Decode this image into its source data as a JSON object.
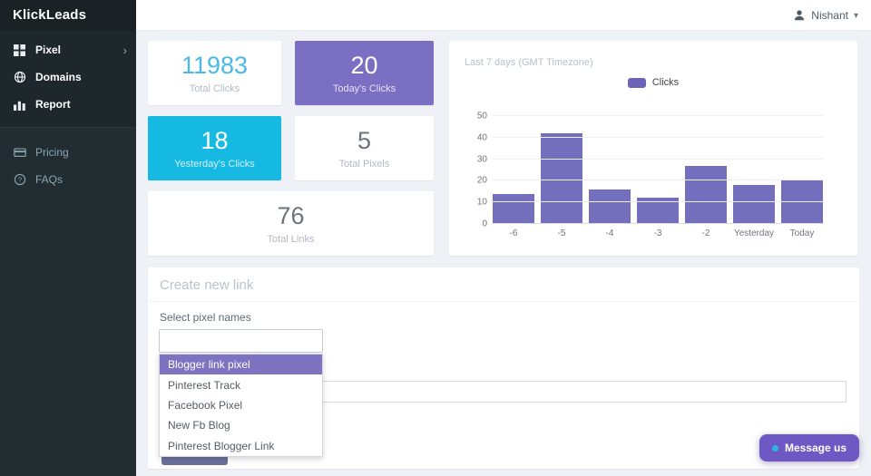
{
  "app": {
    "name": "KlickLeads"
  },
  "header": {
    "user_name": "Nishant"
  },
  "sidebar": {
    "primary": [
      {
        "label": "Pixel",
        "icon": "grid-icon",
        "has_submenu": true
      },
      {
        "label": "Domains",
        "icon": "globe-icon",
        "has_submenu": false
      },
      {
        "label": "Report",
        "icon": "bar-chart-icon",
        "has_submenu": false
      }
    ],
    "secondary": [
      {
        "label": "Pricing",
        "icon": "credit-card-icon"
      },
      {
        "label": "FAQs",
        "icon": "question-circle-icon"
      }
    ]
  },
  "stats": {
    "cards": [
      {
        "value": "11983",
        "label": "Total Clicks"
      },
      {
        "value": "20",
        "label": "Today's Clicks"
      },
      {
        "value": "18",
        "label": "Yesterday's Clicks"
      },
      {
        "value": "5",
        "label": "Total Pixels"
      },
      {
        "value": "76",
        "label": "Total Links"
      }
    ]
  },
  "chart_data": {
    "type": "bar",
    "title": "Last 7 days (GMT Timezone)",
    "legend": [
      {
        "label": "Clicks",
        "color": "#6b64b8"
      }
    ],
    "legend_position": "top-center",
    "categories": [
      "-6",
      "-5",
      "-4",
      "-3",
      "-2",
      "Yesterday",
      "Today"
    ],
    "values": [
      14,
      42,
      16,
      12,
      27,
      18,
      20
    ],
    "xlabel": "",
    "ylabel": "",
    "ylim": [
      0,
      50
    ],
    "yticks": [
      0,
      10,
      20,
      30,
      40,
      50
    ],
    "grid": true,
    "bar_color": "#746fbd"
  },
  "create_link": {
    "heading": "Create new link",
    "select_label": "Select pixel names",
    "select_search_value": "",
    "options": [
      {
        "label": "Blogger link pixel",
        "highlighted": true
      },
      {
        "label": "Pinterest Track",
        "highlighted": false
      },
      {
        "label": "Facebook Pixel",
        "highlighted": false
      },
      {
        "label": "New Fb Blog",
        "highlighted": false
      },
      {
        "label": "Pinterest Blogger Link",
        "highlighted": false
      }
    ],
    "link_input_value": ""
  },
  "chat": {
    "label": "Message us"
  },
  "colors": {
    "accent_purple": "#7266ba",
    "card_purple": "#7b6fc4",
    "card_cyan": "#16b9e2",
    "number_cyan": "#4bb9e8",
    "chat_button": "#6e58c4",
    "chat_dot": "#27b7da",
    "sidebar_bg": "#222d32"
  }
}
